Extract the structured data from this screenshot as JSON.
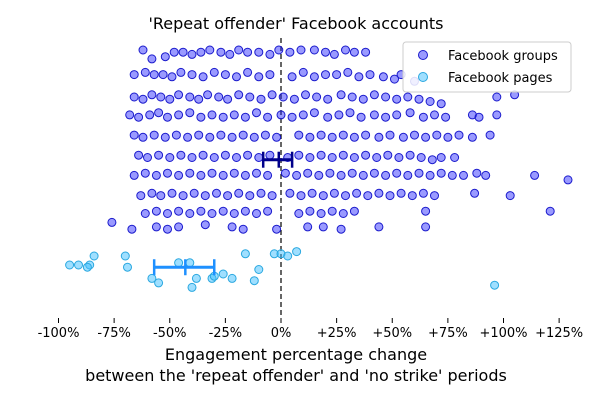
{
  "chart_data": {
    "type": "scatter",
    "title": "'Repeat offender' Facebook accounts",
    "xlabel_line1": "Engagement percentage change",
    "xlabel_line2": "between the 'repeat offender' and 'no strike' periods",
    "xlim": [
      -100,
      135
    ],
    "xticks": [
      -100,
      -75,
      -50,
      -25,
      0,
      25,
      50,
      75,
      100,
      125
    ],
    "xtick_labels": [
      "-100%",
      "-75%",
      "-50%",
      "-25%",
      "0%",
      "+25%",
      "+50%",
      "+75%",
      "+100%",
      "+125%"
    ],
    "zero_line": "dashed",
    "legend_position": "top-right",
    "series": [
      {
        "name": "Facebook groups",
        "color": "#1f1fff",
        "points": [
          [
            -62,
            96
          ],
          [
            -58,
            92
          ],
          [
            -52,
            93
          ],
          [
            -48,
            95
          ],
          [
            -44,
            95
          ],
          [
            -40,
            94
          ],
          [
            -36,
            95
          ],
          [
            -32,
            96
          ],
          [
            -27,
            95
          ],
          [
            -23,
            94
          ],
          [
            -19,
            96
          ],
          [
            -15,
            95
          ],
          [
            -10,
            95
          ],
          [
            -5,
            94
          ],
          [
            -1,
            96
          ],
          [
            4,
            95
          ],
          [
            9,
            96
          ],
          [
            15,
            96
          ],
          [
            20,
            95
          ],
          [
            24,
            94
          ],
          [
            29,
            96
          ],
          [
            33,
            95
          ],
          [
            38,
            95
          ],
          [
            -66,
            85
          ],
          [
            -61,
            86
          ],
          [
            -57,
            85
          ],
          [
            -53,
            85
          ],
          [
            -49,
            84
          ],
          [
            -45,
            86
          ],
          [
            -40,
            85
          ],
          [
            -35,
            84
          ],
          [
            -30,
            86
          ],
          [
            -25,
            85
          ],
          [
            -20,
            84
          ],
          [
            -15,
            86
          ],
          [
            -10,
            84
          ],
          [
            -5,
            85
          ],
          [
            5,
            84
          ],
          [
            10,
            86
          ],
          [
            15,
            84
          ],
          [
            20,
            85
          ],
          [
            25,
            85
          ],
          [
            30,
            86
          ],
          [
            35,
            84
          ],
          [
            40,
            85
          ],
          [
            46,
            84
          ],
          [
            51,
            83
          ],
          [
            54,
            85
          ],
          [
            60,
            82
          ],
          [
            -66,
            75
          ],
          [
            -62,
            74
          ],
          [
            -58,
            76
          ],
          [
            -54,
            75
          ],
          [
            -50,
            74
          ],
          [
            -46,
            76
          ],
          [
            -41,
            75
          ],
          [
            -37,
            74
          ],
          [
            -33,
            76
          ],
          [
            -28,
            75
          ],
          [
            -24,
            74
          ],
          [
            -19,
            76
          ],
          [
            -14,
            75
          ],
          [
            -9,
            74
          ],
          [
            -4,
            76
          ],
          [
            1,
            75
          ],
          [
            6,
            74
          ],
          [
            11,
            76
          ],
          [
            16,
            75
          ],
          [
            21,
            74
          ],
          [
            27,
            76
          ],
          [
            32,
            75
          ],
          [
            37,
            74
          ],
          [
            42,
            76
          ],
          [
            47,
            75
          ],
          [
            52,
            74
          ],
          [
            57,
            75
          ],
          [
            62,
            74
          ],
          [
            67,
            73
          ],
          [
            72,
            72
          ],
          [
            97,
            75
          ],
          [
            105,
            76
          ],
          [
            -68,
            67
          ],
          [
            -64,
            66
          ],
          [
            -59,
            67
          ],
          [
            -55,
            68
          ],
          [
            -51,
            66
          ],
          [
            -46,
            67
          ],
          [
            -41,
            68
          ],
          [
            -36,
            66
          ],
          [
            -31,
            67
          ],
          [
            -26,
            66
          ],
          [
            -21,
            67
          ],
          [
            -16,
            66
          ],
          [
            -11,
            68
          ],
          [
            -6,
            66
          ],
          [
            0,
            67
          ],
          [
            5,
            66
          ],
          [
            10,
            67
          ],
          [
            15,
            68
          ],
          [
            21,
            66
          ],
          [
            26,
            67
          ],
          [
            31,
            68
          ],
          [
            36,
            66
          ],
          [
            42,
            67
          ],
          [
            47,
            66
          ],
          [
            52,
            67
          ],
          [
            58,
            68
          ],
          [
            64,
            66
          ],
          [
            69,
            67
          ],
          [
            74,
            66
          ],
          [
            86,
            67
          ],
          [
            89,
            66
          ],
          [
            97,
            67
          ],
          [
            -66,
            58
          ],
          [
            -62,
            57
          ],
          [
            -57,
            58
          ],
          [
            -52,
            57
          ],
          [
            -47,
            58
          ],
          [
            -42,
            57
          ],
          [
            -37,
            58
          ],
          [
            -32,
            57
          ],
          [
            -27,
            58
          ],
          [
            -22,
            57
          ],
          [
            -17,
            58
          ],
          [
            -12,
            57
          ],
          [
            -7,
            58
          ],
          [
            -2,
            57
          ],
          [
            8,
            58
          ],
          [
            13,
            57
          ],
          [
            18,
            58
          ],
          [
            23,
            57
          ],
          [
            28,
            58
          ],
          [
            33,
            57
          ],
          [
            38,
            58
          ],
          [
            44,
            57
          ],
          [
            49,
            58
          ],
          [
            55,
            57
          ],
          [
            60,
            58
          ],
          [
            65,
            57
          ],
          [
            70,
            58
          ],
          [
            75,
            57
          ],
          [
            80,
            58
          ],
          [
            86,
            57
          ],
          [
            94,
            58
          ],
          [
            -64,
            49
          ],
          [
            -60,
            48
          ],
          [
            -55,
            49
          ],
          [
            -50,
            48
          ],
          [
            -45,
            49
          ],
          [
            -40,
            48
          ],
          [
            -35,
            49
          ],
          [
            -30,
            48
          ],
          [
            -25,
            49
          ],
          [
            -20,
            48
          ],
          [
            -15,
            49
          ],
          [
            -10,
            48
          ],
          [
            -5,
            49
          ],
          [
            3,
            48
          ],
          [
            8,
            49
          ],
          [
            13,
            48
          ],
          [
            18,
            49
          ],
          [
            23,
            48
          ],
          [
            28,
            49
          ],
          [
            33,
            48
          ],
          [
            38,
            49
          ],
          [
            43,
            48
          ],
          [
            48,
            49
          ],
          [
            53,
            48
          ],
          [
            58,
            49
          ],
          [
            63,
            48
          ],
          [
            68,
            47
          ],
          [
            72,
            48
          ],
          [
            78,
            48
          ],
          [
            -66,
            40
          ],
          [
            -61,
            41
          ],
          [
            -56,
            40
          ],
          [
            -51,
            41
          ],
          [
            -46,
            40
          ],
          [
            -41,
            41
          ],
          [
            -36,
            40
          ],
          [
            -31,
            41
          ],
          [
            -26,
            40
          ],
          [
            -21,
            41
          ],
          [
            -16,
            40
          ],
          [
            -11,
            41
          ],
          [
            -6,
            40
          ],
          [
            2,
            41
          ],
          [
            7,
            40
          ],
          [
            12,
            41
          ],
          [
            17,
            40
          ],
          [
            22,
            41
          ],
          [
            27,
            40
          ],
          [
            32,
            41
          ],
          [
            37,
            40
          ],
          [
            42,
            41
          ],
          [
            47,
            40
          ],
          [
            52,
            41
          ],
          [
            57,
            40
          ],
          [
            62,
            41
          ],
          [
            67,
            40
          ],
          [
            72,
            41
          ],
          [
            77,
            40
          ],
          [
            82,
            40
          ],
          [
            88,
            41
          ],
          [
            92,
            40
          ],
          [
            114,
            40
          ],
          [
            129,
            38
          ],
          [
            -63,
            31
          ],
          [
            -58,
            32
          ],
          [
            -54,
            31
          ],
          [
            -49,
            32
          ],
          [
            -44,
            31
          ],
          [
            -39,
            32
          ],
          [
            -34,
            31
          ],
          [
            -29,
            32
          ],
          [
            -24,
            31
          ],
          [
            -19,
            32
          ],
          [
            -14,
            31
          ],
          [
            -9,
            32
          ],
          [
            -4,
            31
          ],
          [
            4,
            32
          ],
          [
            9,
            31
          ],
          [
            14,
            32
          ],
          [
            19,
            31
          ],
          [
            24,
            32
          ],
          [
            29,
            31
          ],
          [
            34,
            32
          ],
          [
            39,
            31
          ],
          [
            44,
            32
          ],
          [
            49,
            31
          ],
          [
            54,
            32
          ],
          [
            59,
            31
          ],
          [
            64,
            32
          ],
          [
            69,
            31
          ],
          [
            87,
            32
          ],
          [
            103,
            31
          ],
          [
            -61,
            23
          ],
          [
            -56,
            24
          ],
          [
            -51,
            23
          ],
          [
            -46,
            24
          ],
          [
            -41,
            23
          ],
          [
            -36,
            24
          ],
          [
            -31,
            23
          ],
          [
            -26,
            24
          ],
          [
            -21,
            23
          ],
          [
            -16,
            24
          ],
          [
            -11,
            23
          ],
          [
            -6,
            24
          ],
          [
            8,
            23
          ],
          [
            13,
            24
          ],
          [
            18,
            23
          ],
          [
            23,
            24
          ],
          [
            28,
            23
          ],
          [
            33,
            24
          ],
          [
            65,
            24
          ],
          [
            121,
            24
          ],
          [
            -76,
            19
          ],
          [
            -67,
            16
          ],
          [
            -56,
            17
          ],
          [
            -51,
            16
          ],
          [
            -46,
            17
          ],
          [
            -34,
            18
          ],
          [
            -22,
            17
          ],
          [
            -17,
            16
          ],
          [
            -2,
            16
          ],
          [
            12,
            17
          ],
          [
            19,
            17
          ],
          [
            27,
            16
          ],
          [
            44,
            17
          ],
          [
            65,
            17
          ]
        ]
      },
      {
        "name": "Facebook pages",
        "color": "#40c0ff",
        "points": [
          [
            -95,
            0
          ],
          [
            -91,
            0
          ],
          [
            -86,
            0
          ],
          [
            -84,
            4
          ],
          [
            -87,
            -1
          ],
          [
            -70,
            4
          ],
          [
            -69,
            -1
          ],
          [
            -58,
            -6
          ],
          [
            -46,
            1
          ],
          [
            -41,
            1
          ],
          [
            -38,
            -6
          ],
          [
            -26,
            -4
          ],
          [
            -31,
            -6
          ],
          [
            -30,
            -5
          ],
          [
            -55,
            -8
          ],
          [
            -40,
            -10
          ],
          [
            -22,
            -6
          ],
          [
            -10,
            -2
          ],
          [
            -16,
            5
          ],
          [
            -12,
            -7
          ],
          [
            -3,
            5
          ],
          [
            0,
            5
          ],
          [
            3,
            4
          ],
          [
            7,
            6
          ],
          [
            96,
            -9
          ]
        ]
      }
    ],
    "error_bars": [
      {
        "series": "Facebook groups",
        "color": "#00008b",
        "center": -1,
        "low": -8,
        "high": 5
      },
      {
        "series": "Facebook pages",
        "color": "#1e90ff",
        "center": -43,
        "low": -57,
        "high": -30
      }
    ]
  }
}
